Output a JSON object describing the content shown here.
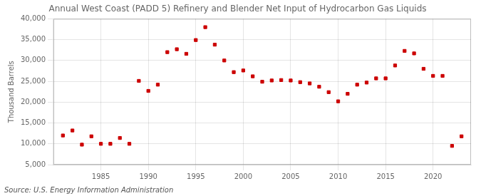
{
  "chart_data": {
    "type": "scatter",
    "title": "Annual West Coast (PADD 5) Refinery and Blender Net Input of Hydrocarbon Gas Liquids",
    "ylabel": "Thousand Barrels",
    "annotations": [
      "Source: U.S. Energy Information Administration"
    ],
    "x": [
      1981,
      1982,
      1983,
      1984,
      1985,
      1986,
      1987,
      1988,
      1989,
      1990,
      1991,
      1992,
      1993,
      1994,
      1995,
      1996,
      1997,
      1998,
      1999,
      2000,
      2001,
      2002,
      2003,
      2004,
      2005,
      2006,
      2007,
      2008,
      2009,
      2010,
      2011,
      2012,
      2013,
      2014,
      2015,
      2016,
      2017,
      2018,
      2019,
      2020,
      2021,
      2022,
      2023
    ],
    "values": [
      12000,
      13200,
      9800,
      11800,
      10000,
      10000,
      11400,
      10000,
      25100,
      22700,
      24200,
      32000,
      32700,
      31600,
      34900,
      38000,
      33800,
      30000,
      27200,
      27600,
      26200,
      24900,
      25200,
      25300,
      25200,
      24800,
      24500,
      23700,
      22400,
      20200,
      22000,
      24200,
      24700,
      25700,
      25700,
      28800,
      32300,
      31700,
      28000,
      26300,
      26300,
      9500,
      11800
    ],
    "color": "#cc0000",
    "marker": "square",
    "xlim": [
      1980,
      2024
    ],
    "xticks": [
      1985,
      1990,
      1995,
      2000,
      2005,
      2010,
      2015,
      2020
    ],
    "ylim": [
      5000,
      40000
    ],
    "yticks": [
      {
        "value": 5000,
        "label": "5,000"
      },
      {
        "value": 10000,
        "label": "10,000"
      },
      {
        "value": 15000,
        "label": "15,000"
      },
      {
        "value": 20000,
        "label": "20,000"
      },
      {
        "value": 25000,
        "label": "25,000"
      },
      {
        "value": 30000,
        "label": "30,000"
      },
      {
        "value": 35000,
        "label": "35,000"
      },
      {
        "value": 40000,
        "label": "40,000"
      }
    ],
    "grid": true
  }
}
